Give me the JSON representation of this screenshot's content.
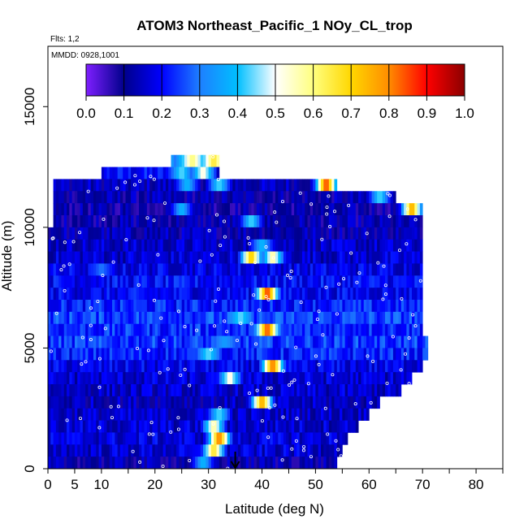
{
  "chart_data": {
    "type": "heatmap",
    "title": "ATOM3 Northeast_Pacific_1 NOy_CL_trop",
    "flights_label": "Flts: 1,2",
    "date_label": "MMDD: 0928,1001",
    "xlabel": "Latitude (deg N)",
    "ylabel": "Altitude (m)",
    "xlim": [
      0,
      85
    ],
    "ylim": [
      0,
      17500
    ],
    "x_ticks": [
      0,
      5,
      10,
      15,
      20,
      25,
      30,
      35,
      40,
      45,
      50,
      55,
      60,
      65,
      70,
      75,
      80,
      85
    ],
    "x_tick_labels": [
      "0",
      "5",
      "10",
      "",
      "20",
      "",
      "30",
      "",
      "40",
      "",
      "50",
      "",
      "60",
      "",
      "70",
      "",
      "80",
      ""
    ],
    "y_ticks": [
      0,
      5000,
      10000,
      15000
    ],
    "y_tick_labels": [
      "0",
      "5000",
      "10000",
      "15000"
    ],
    "colorbar": {
      "range": [
        0.0,
        1.0
      ],
      "tick_labels": [
        "0.0",
        "0.1",
        "0.2",
        "0.3",
        "0.4",
        "0.5",
        "0.6",
        "0.7",
        "0.8",
        "0.9",
        "1.0"
      ],
      "colors": [
        "#7f1fff",
        "#00008b",
        "#0000ff",
        "#1e7fff",
        "#00bfff",
        "#ffffff",
        "#ffff7f",
        "#ffd700",
        "#ff8c00",
        "#ff0000",
        "#8b0000"
      ]
    },
    "marker_latitude": 35,
    "curtain_rows": [
      {
        "alt": [
          12500,
          13000
        ],
        "lat": [
          23,
          32
        ],
        "base": 0.32,
        "hot": [
          [
            27,
            0.62
          ],
          [
            31,
            0.68
          ]
        ]
      },
      {
        "alt": [
          12000,
          12500
        ],
        "lat": [
          10,
          32
        ],
        "base": 0.2,
        "hot": [
          [
            25,
            0.45
          ],
          [
            29,
            0.55
          ]
        ]
      },
      {
        "alt": [
          11500,
          12000
        ],
        "lat": [
          1,
          54
        ],
        "base": 0.14,
        "hot": [
          [
            26,
            0.4
          ],
          [
            32,
            0.45
          ],
          [
            52,
            0.9
          ]
        ]
      },
      {
        "alt": [
          11000,
          11500
        ],
        "lat": [
          1,
          65
        ],
        "base": 0.12,
        "hot": [
          [
            62,
            0.45
          ]
        ]
      },
      {
        "alt": [
          10500,
          11000
        ],
        "lat": [
          1,
          70
        ],
        "base": 0.11,
        "hot": [
          [
            25,
            0.4
          ],
          [
            68,
            0.8
          ]
        ]
      },
      {
        "alt": [
          10000,
          10500
        ],
        "lat": [
          1,
          70
        ],
        "base": 0.12,
        "hot": [
          [
            38,
            0.45
          ]
        ]
      },
      {
        "alt": [
          9500,
          10000
        ],
        "lat": [
          0,
          70
        ],
        "base": 0.13,
        "hot": []
      },
      {
        "alt": [
          9000,
          9500
        ],
        "lat": [
          0,
          70
        ],
        "base": 0.15,
        "hot": [
          [
            40,
            0.4
          ]
        ]
      },
      {
        "alt": [
          8500,
          9000
        ],
        "lat": [
          0,
          70
        ],
        "base": 0.16,
        "hot": [
          [
            38,
            0.75
          ],
          [
            42,
            0.6
          ]
        ]
      },
      {
        "alt": [
          8000,
          8500
        ],
        "lat": [
          0,
          70
        ],
        "base": 0.18,
        "hot": [
          [
            10,
            0.3
          ]
        ]
      },
      {
        "alt": [
          7500,
          8000
        ],
        "lat": [
          0,
          70
        ],
        "base": 0.2,
        "hot": []
      },
      {
        "alt": [
          7000,
          7500
        ],
        "lat": [
          0,
          70
        ],
        "base": 0.19,
        "hot": [
          [
            41,
            0.9
          ]
        ]
      },
      {
        "alt": [
          6500,
          7000
        ],
        "lat": [
          0,
          70
        ],
        "base": 0.22,
        "hot": []
      },
      {
        "alt": [
          6000,
          6500
        ],
        "lat": [
          0,
          70
        ],
        "base": 0.25,
        "hot": [
          [
            36,
            0.45
          ]
        ]
      },
      {
        "alt": [
          5500,
          6000
        ],
        "lat": [
          0,
          70
        ],
        "base": 0.23,
        "hot": [
          [
            41,
            0.88
          ]
        ]
      },
      {
        "alt": [
          5000,
          5500
        ],
        "lat": [
          0,
          71
        ],
        "base": 0.24,
        "hot": [
          [
            33,
            0.35
          ]
        ]
      },
      {
        "alt": [
          4500,
          5000
        ],
        "lat": [
          0,
          71
        ],
        "base": 0.22,
        "hot": [
          [
            30,
            0.45
          ]
        ]
      },
      {
        "alt": [
          4000,
          4500
        ],
        "lat": [
          0,
          70
        ],
        "base": 0.18,
        "hot": [
          [
            42,
            0.85
          ]
        ]
      },
      {
        "alt": [
          3500,
          4000
        ],
        "lat": [
          0,
          68
        ],
        "base": 0.16,
        "hot": [
          [
            34,
            0.55
          ]
        ]
      },
      {
        "alt": [
          3000,
          3500
        ],
        "lat": [
          0,
          66
        ],
        "base": 0.15,
        "hot": []
      },
      {
        "alt": [
          2500,
          3000
        ],
        "lat": [
          0,
          62
        ],
        "base": 0.14,
        "hot": [
          [
            40,
            0.8
          ]
        ]
      },
      {
        "alt": [
          2000,
          2500
        ],
        "lat": [
          0,
          60
        ],
        "base": 0.15,
        "hot": [
          [
            32,
            0.45
          ]
        ]
      },
      {
        "alt": [
          1500,
          2000
        ],
        "lat": [
          0,
          58
        ],
        "base": 0.16,
        "hot": [
          [
            31,
            0.6
          ]
        ]
      },
      {
        "alt": [
          1000,
          1500
        ],
        "lat": [
          0,
          56
        ],
        "base": 0.17,
        "hot": [
          [
            32,
            0.85
          ]
        ]
      },
      {
        "alt": [
          500,
          1000
        ],
        "lat": [
          0,
          55
        ],
        "base": 0.16,
        "hot": [
          [
            31,
            0.7
          ]
        ]
      },
      {
        "alt": [
          0,
          500
        ],
        "lat": [
          0,
          54
        ],
        "base": 0.12,
        "hot": [
          [
            29,
            0.4
          ]
        ]
      }
    ]
  }
}
